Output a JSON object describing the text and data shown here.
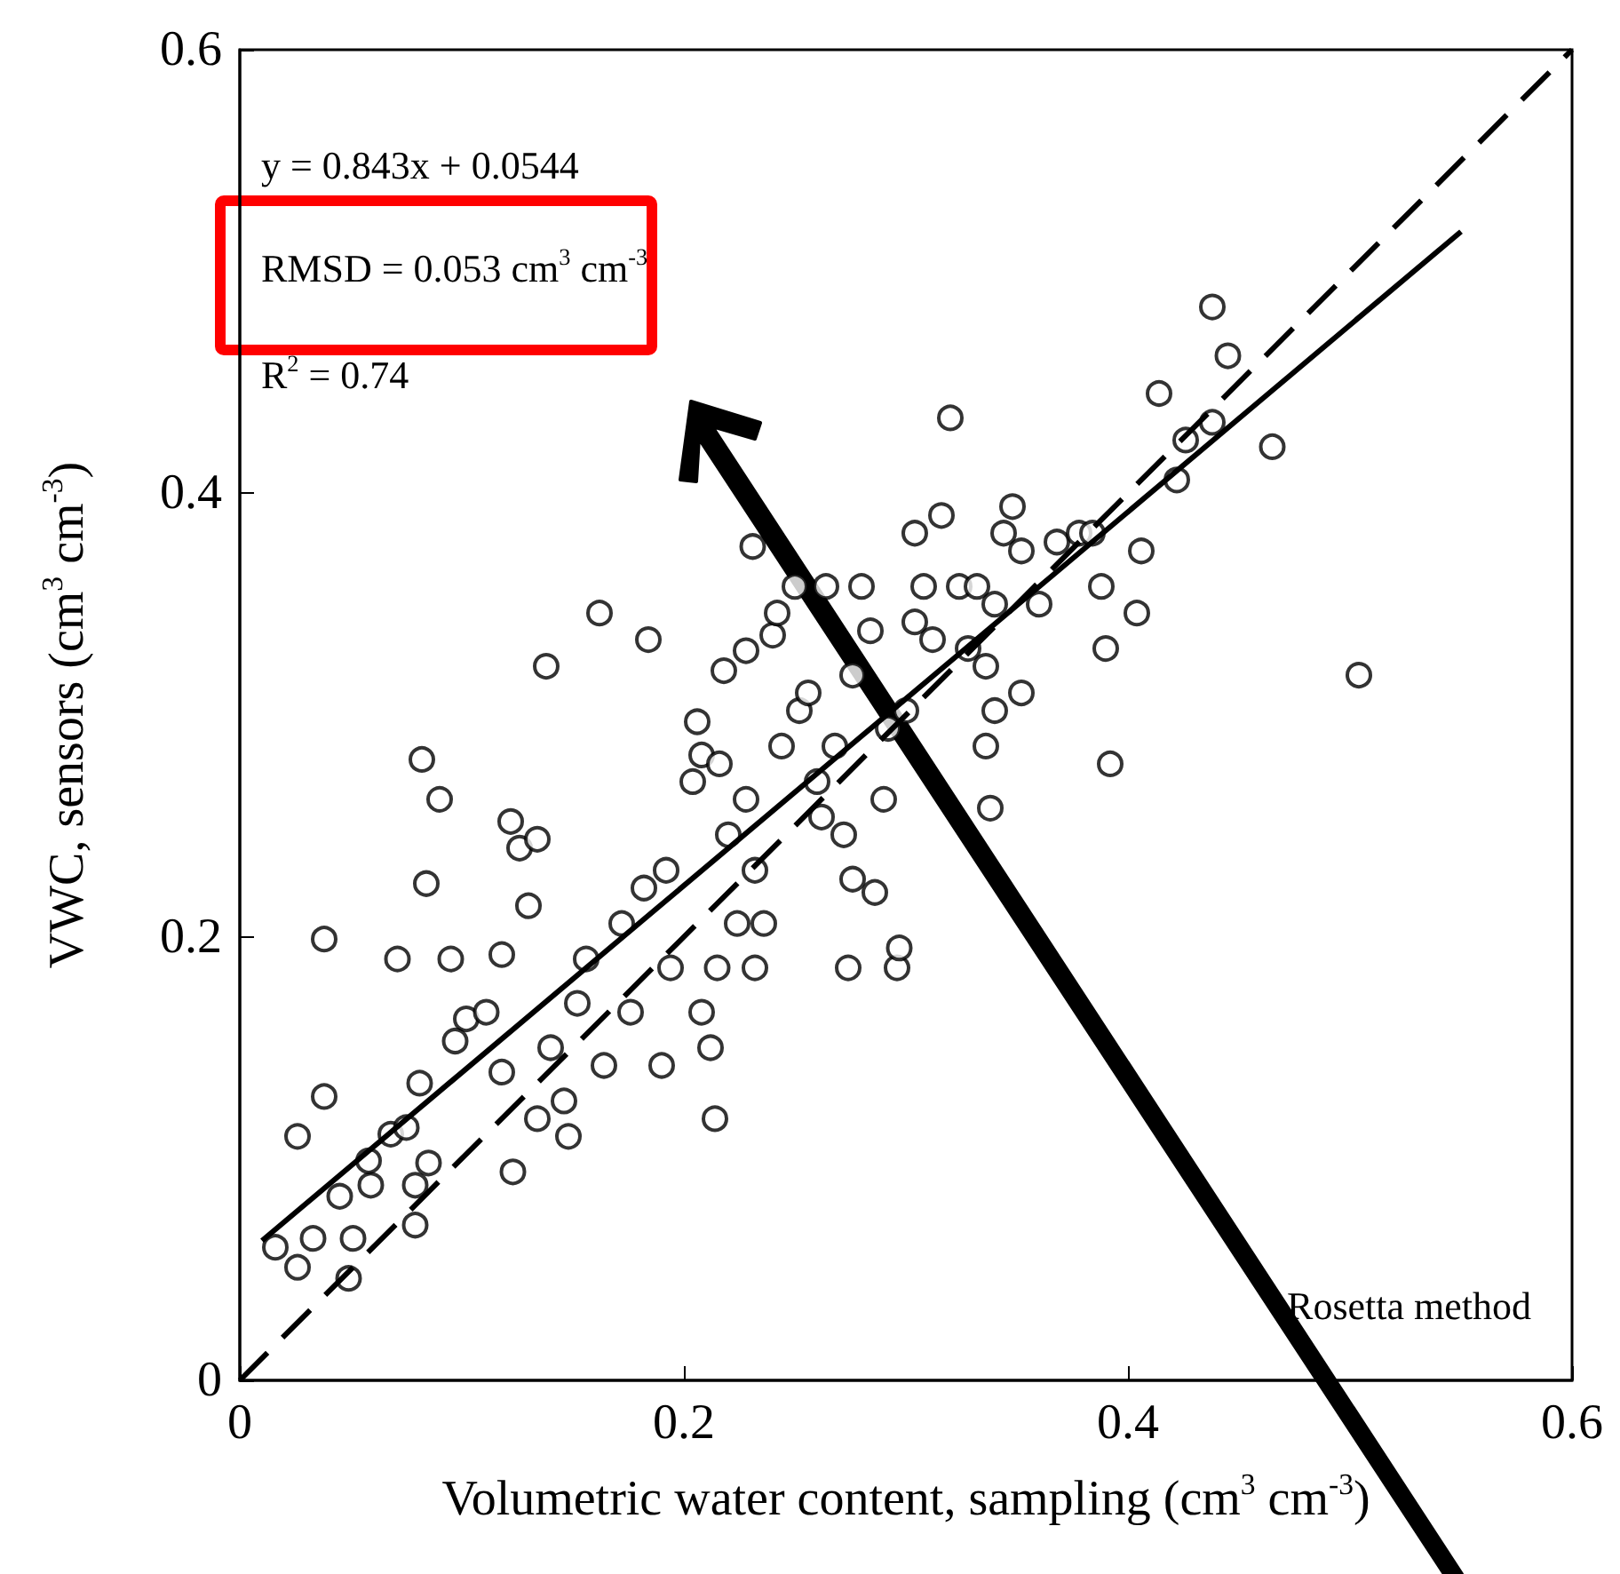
{
  "chart_data": {
    "type": "scatter",
    "xlabel": "Volumetric water content, sampling (cm$^{3}$ cm$^{-3}$)",
    "ylabel": "VWC, sensors (cm$^{3}$ cm$^{-3}$)",
    "xlim": [
      0,
      0.6
    ],
    "ylim": [
      0,
      0.6
    ],
    "xticks": [
      0,
      0.2,
      0.4,
      0.6
    ],
    "yticks": [
      0,
      0.2,
      0.4,
      0.6
    ],
    "annotations": [
      "y = 0.843x + 0.0544",
      "RMSD = 0.053 cm$^{3}$ cm$^{-3}$",
      "R$^{2}$ = 0.74",
      "Rosetta method"
    ],
    "series": [
      {
        "marker": "circle",
        "color": "#000000",
        "x": [
          0.082,
          0.09,
          0.084,
          0.038,
          0.026,
          0.038,
          0.016,
          0.026,
          0.033,
          0.049,
          0.051,
          0.045,
          0.059,
          0.058,
          0.068,
          0.079,
          0.079,
          0.085,
          0.075,
          0.081,
          0.071,
          0.095,
          0.102,
          0.111,
          0.097,
          0.118,
          0.122,
          0.126,
          0.134,
          0.13,
          0.138,
          0.162,
          0.184,
          0.146,
          0.134,
          0.123,
          0.118,
          0.14,
          0.152,
          0.156,
          0.164,
          0.148,
          0.172,
          0.182,
          0.192,
          0.194,
          0.208,
          0.215,
          0.212,
          0.214,
          0.19,
          0.176,
          0.204,
          0.206,
          0.208,
          0.216,
          0.22,
          0.228,
          0.232,
          0.236,
          0.232,
          0.224,
          0.218,
          0.228,
          0.24,
          0.231,
          0.242,
          0.25,
          0.252,
          0.244,
          0.26,
          0.262,
          0.268,
          0.272,
          0.276,
          0.284,
          0.28,
          0.264,
          0.256,
          0.276,
          0.274,
          0.286,
          0.296,
          0.292,
          0.29,
          0.3,
          0.304,
          0.304,
          0.316,
          0.32,
          0.308,
          0.312,
          0.324,
          0.328,
          0.336,
          0.332,
          0.34,
          0.344,
          0.348,
          0.352,
          0.34,
          0.336,
          0.338,
          0.352,
          0.36,
          0.368,
          0.378,
          0.384,
          0.388,
          0.39,
          0.392,
          0.404,
          0.406,
          0.414,
          0.422,
          0.426,
          0.438,
          0.438,
          0.445,
          0.465,
          0.504,
          0.297
        ],
        "values": [
          0.28,
          0.262,
          0.224,
          0.199,
          0.11,
          0.128,
          0.06,
          0.051,
          0.064,
          0.046,
          0.064,
          0.083,
          0.088,
          0.099,
          0.111,
          0.088,
          0.07,
          0.098,
          0.114,
          0.134,
          0.19,
          0.19,
          0.163,
          0.166,
          0.153,
          0.192,
          0.252,
          0.24,
          0.244,
          0.214,
          0.322,
          0.346,
          0.334,
          0.126,
          0.118,
          0.094,
          0.139,
          0.15,
          0.17,
          0.19,
          0.142,
          0.11,
          0.206,
          0.222,
          0.23,
          0.186,
          0.166,
          0.186,
          0.15,
          0.118,
          0.142,
          0.166,
          0.27,
          0.297,
          0.282,
          0.278,
          0.246,
          0.262,
          0.23,
          0.206,
          0.186,
          0.206,
          0.32,
          0.329,
          0.336,
          0.376,
          0.346,
          0.358,
          0.302,
          0.286,
          0.27,
          0.254,
          0.286,
          0.246,
          0.318,
          0.338,
          0.358,
          0.358,
          0.31,
          0.226,
          0.186,
          0.22,
          0.186,
          0.294,
          0.262,
          0.302,
          0.342,
          0.382,
          0.39,
          0.434,
          0.358,
          0.334,
          0.358,
          0.33,
          0.322,
          0.358,
          0.35,
          0.382,
          0.394,
          0.31,
          0.302,
          0.286,
          0.258,
          0.374,
          0.35,
          0.378,
          0.382,
          0.382,
          0.358,
          0.33,
          0.278,
          0.346,
          0.374,
          0.445,
          0.406,
          0.424,
          0.432,
          0.484,
          0.462,
          0.421,
          0.318,
          0.195
        ]
      },
      {
        "type": "line",
        "color": "#000000",
        "line_style": "solid",
        "x": [
          0.01,
          0.55
        ],
        "values": [
          0.063,
          0.518
        ]
      },
      {
        "type": "line",
        "color": "#000000",
        "line_style": "dashed",
        "x": [
          0,
          0.6
        ],
        "values": [
          0,
          0.6
        ]
      }
    ]
  }
}
